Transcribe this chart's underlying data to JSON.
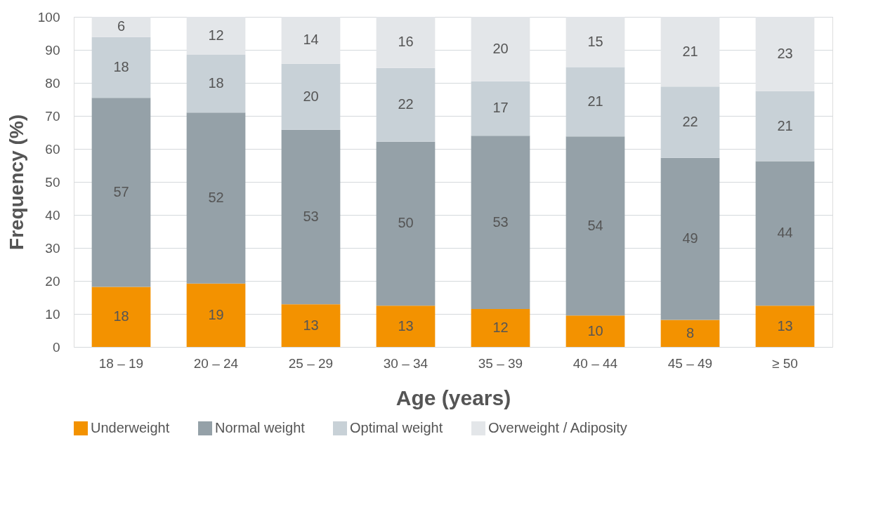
{
  "chart_data": {
    "type": "bar",
    "stacked": true,
    "xlabel": "Age (years)",
    "ylabel": "Frequency (%)",
    "categories": [
      "18 – 19",
      "20 – 24",
      "25 – 29",
      "30 – 34",
      "35 – 39",
      "40 – 44",
      "45 – 49",
      "≥ 50"
    ],
    "ylim": [
      0,
      100
    ],
    "yticks": [
      0,
      10,
      20,
      30,
      40,
      50,
      60,
      70,
      80,
      90,
      100
    ],
    "grid": "y",
    "legend": "bottom",
    "series": [
      {
        "name": "Underweight",
        "color": "#f39200",
        "values": [
          18.2,
          19.2,
          12.9,
          12.5,
          11.5,
          9.5,
          8.2,
          12.5
        ],
        "value_labels": [
          "18",
          "19",
          "13",
          "13",
          "12",
          "10",
          "8",
          "13"
        ]
      },
      {
        "name": "Normal weight",
        "color": "#95a1a8",
        "values": [
          57.3,
          51.8,
          52.9,
          49.7,
          52.5,
          54.3,
          49.1,
          43.8
        ],
        "value_labels": [
          "57",
          "52",
          "53",
          "50",
          "53",
          "54",
          "49",
          "44"
        ]
      },
      {
        "name": "Optimal weight",
        "color": "#c8d1d7",
        "values": [
          18.4,
          17.5,
          20.0,
          22.3,
          16.5,
          21.0,
          21.6,
          21.2
        ],
        "value_labels": [
          "18",
          "18",
          "20",
          "22",
          "17",
          "21",
          "22",
          "21"
        ]
      },
      {
        "name": "Overweight / Adiposity",
        "color": "#e3e6e9",
        "values": [
          6.1,
          11.5,
          14.2,
          15.5,
          19.5,
          15.2,
          21.1,
          22.5
        ],
        "value_labels": [
          "6",
          "12",
          "14",
          "16",
          "20",
          "15",
          "21",
          "23"
        ]
      }
    ]
  }
}
